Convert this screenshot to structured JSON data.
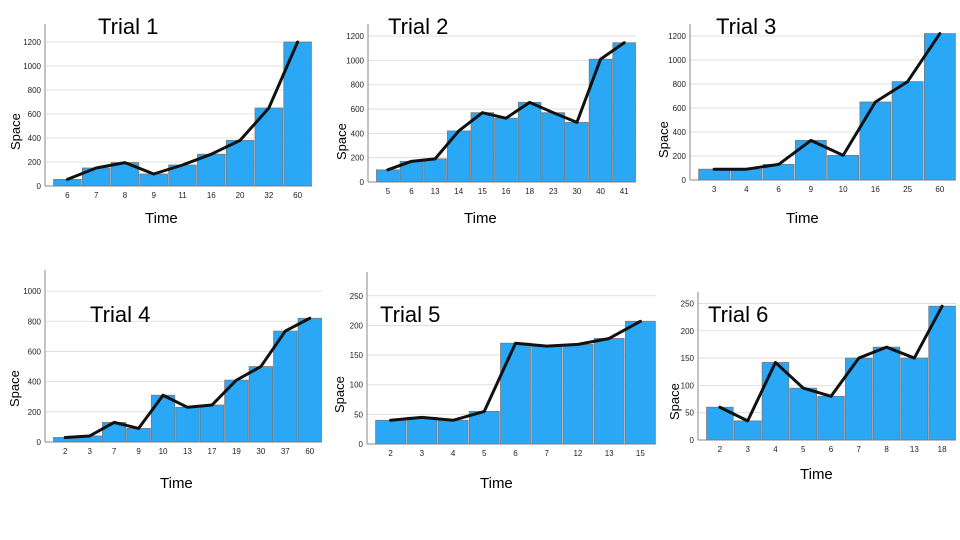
{
  "chart_data": [
    {
      "type": "bar",
      "title": "Trial 1",
      "xlabel": "Time",
      "ylabel": "Space",
      "categories": [
        "6",
        "7",
        "8",
        "9",
        "11",
        "16",
        "20",
        "32",
        "60"
      ],
      "values": [
        55,
        150,
        195,
        100,
        175,
        265,
        380,
        650,
        1200
      ],
      "line_values": [
        55,
        150,
        195,
        100,
        175,
        265,
        380,
        650,
        1200
      ],
      "yticks": [
        0,
        200,
        400,
        600,
        800,
        1000,
        1200
      ],
      "ylim": [
        0,
        1300
      ],
      "grid": true
    },
    {
      "type": "bar",
      "title": "Trial 2",
      "xlabel": "Time",
      "ylabel": "Space",
      "categories": [
        "5",
        "6",
        "13",
        "14",
        "15",
        "16",
        "18",
        "23",
        "30",
        "40",
        "41"
      ],
      "values": [
        100,
        170,
        190,
        420,
        570,
        525,
        655,
        570,
        490,
        1010,
        1145
      ],
      "line_values": [
        100,
        170,
        190,
        420,
        570,
        525,
        655,
        570,
        490,
        1010,
        1145
      ],
      "yticks": [
        0,
        200,
        400,
        600,
        800,
        1000,
        1200
      ],
      "ylim": [
        0,
        1250
      ],
      "grid": true
    },
    {
      "type": "bar",
      "title": "Trial 3",
      "xlabel": "Time",
      "ylabel": "Space",
      "categories": [
        "3",
        "4",
        "6",
        "9",
        "10",
        "16",
        "25",
        "60"
      ],
      "values": [
        90,
        90,
        130,
        330,
        205,
        650,
        820,
        1220
      ],
      "line_values": [
        90,
        90,
        130,
        330,
        205,
        650,
        820,
        1220
      ],
      "yticks": [
        0,
        200,
        400,
        600,
        800,
        1000,
        1200
      ],
      "ylim": [
        0,
        1250
      ],
      "grid": true
    },
    {
      "type": "bar",
      "title": "Trial 4",
      "xlabel": "Time",
      "ylabel": "Space",
      "categories": [
        "2",
        "3",
        "7",
        "9",
        "10",
        "13",
        "17",
        "19",
        "30",
        "37",
        "60"
      ],
      "values": [
        30,
        40,
        130,
        90,
        310,
        230,
        245,
        410,
        500,
        735,
        820
      ],
      "line_values": [
        30,
        40,
        130,
        90,
        310,
        230,
        245,
        410,
        500,
        735,
        820
      ],
      "yticks": [
        0,
        200,
        400,
        600,
        800,
        1000
      ],
      "ylim": [
        0,
        1100
      ],
      "grid": true
    },
    {
      "type": "bar",
      "title": "Trial 5",
      "xlabel": "Time",
      "ylabel": "Space",
      "categories": [
        "2",
        "3",
        "4",
        "5",
        "6",
        "7",
        "12",
        "13",
        "15"
      ],
      "values": [
        40,
        45,
        40,
        55,
        170,
        165,
        168,
        178,
        207
      ],
      "line_values": [
        40,
        45,
        40,
        55,
        170,
        165,
        168,
        178,
        207
      ],
      "yticks": [
        0,
        50,
        100,
        150,
        200,
        250
      ],
      "ylim": [
        0,
        280
      ],
      "grid": true
    },
    {
      "type": "bar",
      "title": "Trial 6",
      "xlabel": "Time",
      "ylabel": "Space",
      "categories": [
        "2",
        "3",
        "4",
        "5",
        "6",
        "7",
        "8",
        "13",
        "18"
      ],
      "values": [
        60,
        35,
        142,
        95,
        80,
        150,
        170,
        150,
        245
      ],
      "line_values": [
        60,
        35,
        142,
        95,
        80,
        150,
        170,
        150,
        245
      ],
      "yticks": [
        0,
        50,
        100,
        150,
        200,
        250
      ],
      "ylim": [
        0,
        260
      ],
      "grid": true
    }
  ]
}
